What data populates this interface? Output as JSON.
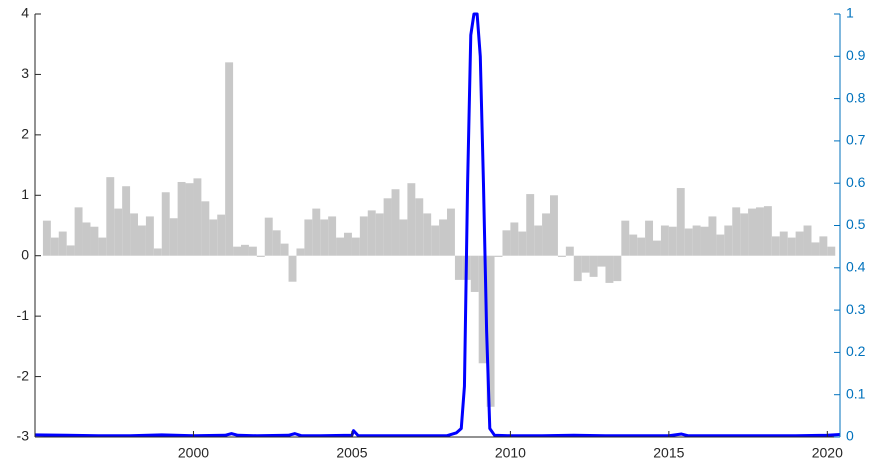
{
  "chart_data": {
    "type": "combo",
    "xlim": [
      1995,
      2020.4
    ],
    "xticks": [
      2000,
      2005,
      2010,
      2015,
      2020
    ],
    "ylim": [
      -3,
      4
    ],
    "yticks": [
      -3,
      -2,
      -1,
      0,
      1,
      2,
      3,
      4
    ],
    "y2lim": [
      0,
      1
    ],
    "y2ticks": [
      0,
      0.1,
      0.2,
      0.3,
      0.4,
      0.5,
      0.6,
      0.7,
      0.8,
      0.9,
      1
    ],
    "y2color": "#0072bd",
    "series": [
      {
        "type": "bar",
        "color": "#c8c8c8",
        "width": 0.25,
        "x": [
          1995.25,
          1995.5,
          1995.75,
          1996,
          1996.25,
          1996.5,
          1996.75,
          1997,
          1997.25,
          1997.5,
          1997.75,
          1998,
          1998.25,
          1998.5,
          1998.75,
          1999,
          1999.25,
          1999.5,
          1999.75,
          2000,
          2000.25,
          2000.5,
          2000.75,
          2001,
          2001.25,
          2001.5,
          2001.75,
          2002,
          2002.25,
          2002.5,
          2002.75,
          2003,
          2003.25,
          2003.5,
          2003.75,
          2004,
          2004.25,
          2004.5,
          2004.75,
          2005,
          2005.25,
          2005.5,
          2005.75,
          2006,
          2006.25,
          2006.5,
          2006.75,
          2007,
          2007.25,
          2007.5,
          2007.75,
          2008,
          2008.25,
          2008.5,
          2008.75,
          2009,
          2009.25,
          2009.5,
          2009.75,
          2010,
          2010.25,
          2010.5,
          2010.75,
          2011,
          2011.25,
          2011.5,
          2011.75,
          2012,
          2012.25,
          2012.5,
          2012.75,
          2013,
          2013.25,
          2013.5,
          2013.75,
          2014,
          2014.25,
          2014.5,
          2014.75,
          2015,
          2015.25,
          2015.5,
          2015.75,
          2016,
          2016.25,
          2016.5,
          2016.75,
          2017,
          2017.25,
          2017.5,
          2017.75,
          2018,
          2018.25,
          2018.5,
          2018.75,
          2019,
          2019.25,
          2019.5,
          2019.75,
          2020
        ],
        "values": [
          0.58,
          0.3,
          0.4,
          0.17,
          0.8,
          0.55,
          0.48,
          0.3,
          1.3,
          0.78,
          1.15,
          0.7,
          0.5,
          0.65,
          0.12,
          1.05,
          0.62,
          1.22,
          1.2,
          1.28,
          0.9,
          0.6,
          0.68,
          3.2,
          0.15,
          0.18,
          0.15,
          -0.02,
          0.63,
          0.42,
          0.2,
          -0.43,
          0.12,
          0.6,
          0.78,
          0.6,
          0.65,
          0.3,
          0.38,
          0.3,
          0.65,
          0.75,
          0.7,
          0.95,
          1.1,
          0.6,
          1.2,
          0.95,
          0.7,
          0.5,
          0.6,
          0.78,
          -0.4,
          -0.4,
          -0.6,
          -1.78,
          -2.5,
          -0.02,
          0.42,
          0.55,
          0.4,
          1.02,
          0.5,
          0.7,
          1.0,
          -0.02,
          0.15,
          -0.42,
          -0.28,
          -0.35,
          -0.18,
          -0.45,
          -0.42,
          0.58,
          0.35,
          0.3,
          0.58,
          0.25,
          0.5,
          0.48,
          1.12,
          0.45,
          0.5,
          0.48,
          0.65,
          0.35,
          0.5,
          0.8,
          0.7,
          0.78,
          0.8,
          0.82,
          0.32,
          0.4,
          0.3,
          0.4,
          0.5,
          0.22,
          0.32,
          0.15
        ]
      },
      {
        "type": "line",
        "axis": "y2",
        "color": "#0000ff",
        "x": [
          1995,
          1996,
          1997,
          1998,
          1999,
          2000,
          2001,
          2001.2,
          2001.4,
          2002,
          2003,
          2003.2,
          2003.4,
          2004,
          2005,
          2005.05,
          2005.2,
          2006,
          2007,
          2008,
          2008.3,
          2008.45,
          2008.55,
          2008.65,
          2008.75,
          2008.85,
          2008.95,
          2009.05,
          2009.15,
          2009.25,
          2009.35,
          2009.5,
          2010,
          2011,
          2012,
          2013,
          2014,
          2015,
          2015.4,
          2015.6,
          2016,
          2017,
          2018,
          2019,
          2020,
          2020.4
        ],
        "values": [
          0.005,
          0.004,
          0.003,
          0.003,
          0.005,
          0.003,
          0.004,
          0.008,
          0.004,
          0.003,
          0.004,
          0.008,
          0.003,
          0.003,
          0.004,
          0.015,
          0.003,
          0.003,
          0.003,
          0.003,
          0.01,
          0.02,
          0.12,
          0.6,
          0.95,
          1.0,
          1.0,
          0.9,
          0.6,
          0.25,
          0.02,
          0.004,
          0.003,
          0.003,
          0.004,
          0.003,
          0.003,
          0.003,
          0.007,
          0.003,
          0.003,
          0.003,
          0.003,
          0.003,
          0.004,
          0.006
        ]
      }
    ]
  }
}
